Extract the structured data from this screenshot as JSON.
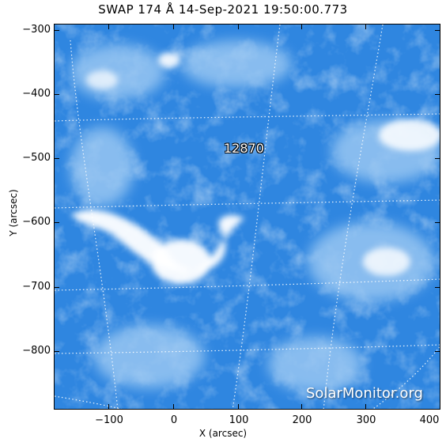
{
  "title": "SWAP 174 Å 14-Sep-2021 19:50:00.773",
  "xlabel": "X (arcsec)",
  "ylabel": "Y (arcsec)",
  "xticks": [
    "−100",
    "0",
    "100",
    "200",
    "300",
    "400"
  ],
  "yticks": [
    "−300",
    "−400",
    "−500",
    "−600",
    "−700",
    "−800"
  ],
  "region_label": "12870",
  "watermark": "SolarMonitor.org",
  "colors": {
    "background": "#2f86e0",
    "bright": "#ffffff",
    "grid": "#ffffff"
  }
}
